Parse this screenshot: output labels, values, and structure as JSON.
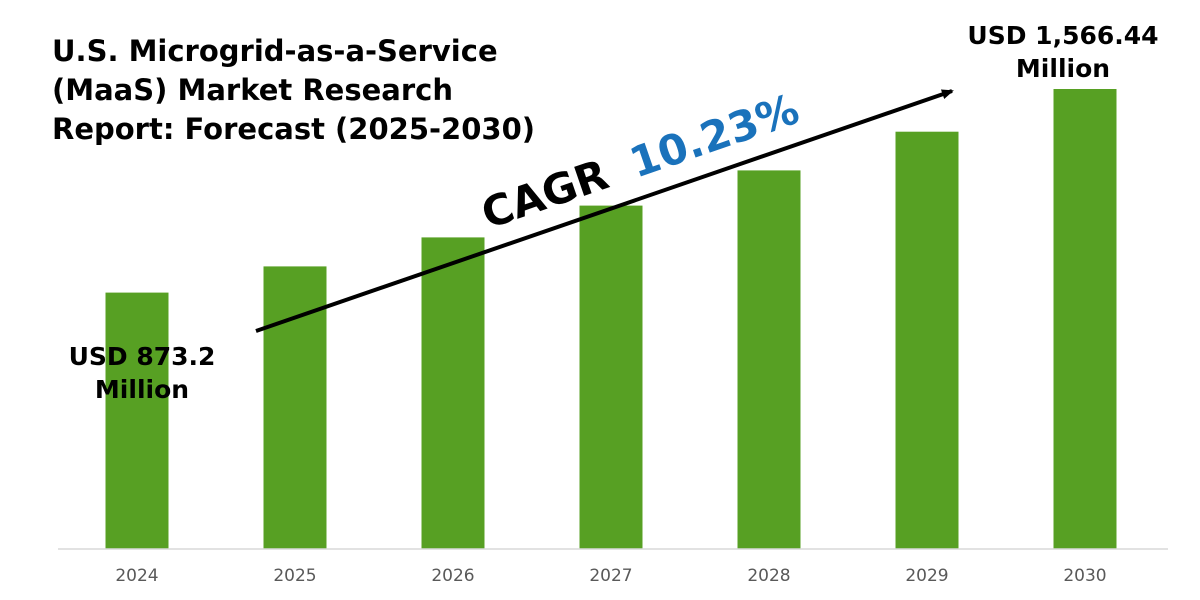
{
  "colors": {
    "bar": "#57a023",
    "cagr_value": "#1a72bb",
    "axis": "#d9d9d9",
    "arrow": "#000000",
    "tick": "#595959"
  },
  "annotations": {
    "first_value_line1": "USD 873.2",
    "first_value_line2": "Million",
    "last_value_line1": "USD 1,566.44",
    "last_value_line2": "Million",
    "cagr_prefix": "CAGR",
    "cagr_value": "10.23%"
  },
  "chart_data": {
    "type": "bar",
    "title_lines": [
      "U.S. Microgrid-as-a-Service",
      "(MaaS) Market Research",
      "Report: Forecast (2025-2030)"
    ],
    "title": "U.S. Microgrid-as-a-Service (MaaS) Market Research Report: Forecast (2025-2030)",
    "xlabel": "",
    "ylabel": "",
    "categories": [
      "2024",
      "2025",
      "2026",
      "2027",
      "2028",
      "2029",
      "2030"
    ],
    "values": [
      873.2,
      962.5,
      1061.0,
      1169.5,
      1289.1,
      1421.0,
      1566.44
    ],
    "ylim": [
      0,
      1800
    ],
    "grid": false,
    "legend": "none"
  }
}
